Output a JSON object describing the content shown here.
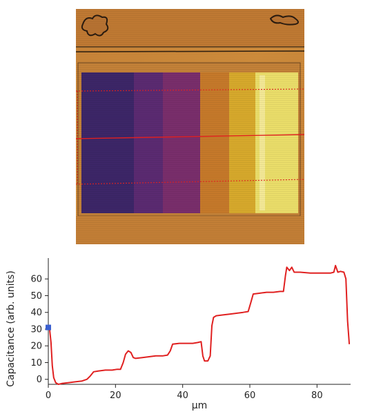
{
  "image": {
    "kind": "scanning-capacitance-micrograph",
    "colormap": "purple-orange-yellow",
    "profile_line_color": "#e02020"
  },
  "chart_data": {
    "type": "line",
    "title": "",
    "xlabel": "µm",
    "ylabel": "Capacitance (arb. units)",
    "xlim": [
      0,
      90
    ],
    "ylim": [
      -3,
      70
    ],
    "xticks": [
      0,
      20,
      40,
      60,
      80
    ],
    "yticks": [
      0,
      10,
      20,
      30,
      40,
      50,
      60
    ],
    "grid": false,
    "series": [
      {
        "color": "#e02020",
        "points": [
          [
            0,
            31
          ],
          [
            0.4,
            30
          ],
          [
            0.8,
            22
          ],
          [
            1.2,
            8
          ],
          [
            1.6,
            1
          ],
          [
            2.2,
            -2
          ],
          [
            3,
            -3
          ],
          [
            4,
            -2.5
          ],
          [
            6,
            -2
          ],
          [
            8,
            -1.5
          ],
          [
            10,
            -1
          ],
          [
            11.5,
            0
          ],
          [
            12.5,
            2
          ],
          [
            13.5,
            4.5
          ],
          [
            15,
            5
          ],
          [
            17,
            5.5
          ],
          [
            19,
            5.5
          ],
          [
            20.5,
            6
          ],
          [
            21.5,
            6
          ],
          [
            22.3,
            10
          ],
          [
            23,
            15
          ],
          [
            23.8,
            17
          ],
          [
            24.6,
            16
          ],
          [
            25.3,
            13
          ],
          [
            26,
            12.5
          ],
          [
            28,
            13
          ],
          [
            30,
            13.5
          ],
          [
            32,
            14
          ],
          [
            34,
            14
          ],
          [
            35.5,
            14.5
          ],
          [
            36.3,
            17
          ],
          [
            37,
            21
          ],
          [
            39,
            21.5
          ],
          [
            41,
            21.5
          ],
          [
            43,
            21.5
          ],
          [
            44.5,
            22
          ],
          [
            45.5,
            22.5
          ],
          [
            46,
            14
          ],
          [
            46.5,
            11
          ],
          [
            47.5,
            11
          ],
          [
            48.2,
            14
          ],
          [
            48.7,
            32
          ],
          [
            49.2,
            37
          ],
          [
            50,
            38
          ],
          [
            52,
            38.5
          ],
          [
            54,
            39
          ],
          [
            56,
            39.5
          ],
          [
            58,
            40
          ],
          [
            59.5,
            40.5
          ],
          [
            60.3,
            46
          ],
          [
            61,
            51
          ],
          [
            63,
            51.5
          ],
          [
            65,
            52
          ],
          [
            67,
            52
          ],
          [
            69,
            52.5
          ],
          [
            70,
            52.5
          ],
          [
            70.6,
            62
          ],
          [
            71,
            67
          ],
          [
            71.8,
            65
          ],
          [
            72.5,
            67
          ],
          [
            73.2,
            64
          ],
          [
            75,
            64
          ],
          [
            78,
            63.5
          ],
          [
            81,
            63.5
          ],
          [
            84,
            63.5
          ],
          [
            85,
            64
          ],
          [
            85.5,
            68
          ],
          [
            86.2,
            64
          ],
          [
            87,
            64.5
          ],
          [
            88,
            64
          ],
          [
            88.6,
            60
          ],
          [
            89.1,
            35
          ],
          [
            89.6,
            21
          ]
        ]
      }
    ],
    "start_marker": {
      "x": 0,
      "y": 31,
      "color": "#3a5fcf"
    }
  }
}
